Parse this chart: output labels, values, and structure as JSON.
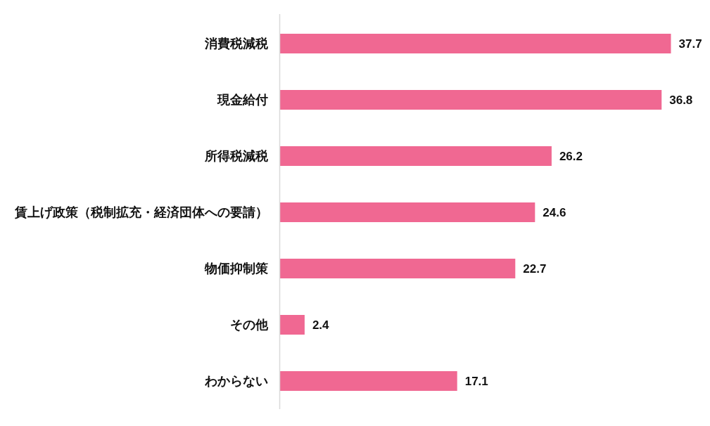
{
  "chart_data": {
    "type": "bar",
    "orientation": "horizontal",
    "categories": [
      "消費税減税",
      "現金給付",
      "所得税減税",
      "賃上げ政策（税制拡充・経済団体への要請）",
      "物価抑制策",
      "その他",
      "わからない"
    ],
    "values": [
      37.7,
      36.8,
      26.2,
      24.6,
      22.7,
      2.4,
      17.1
    ],
    "color": "#f06892",
    "data_labels": true
  }
}
